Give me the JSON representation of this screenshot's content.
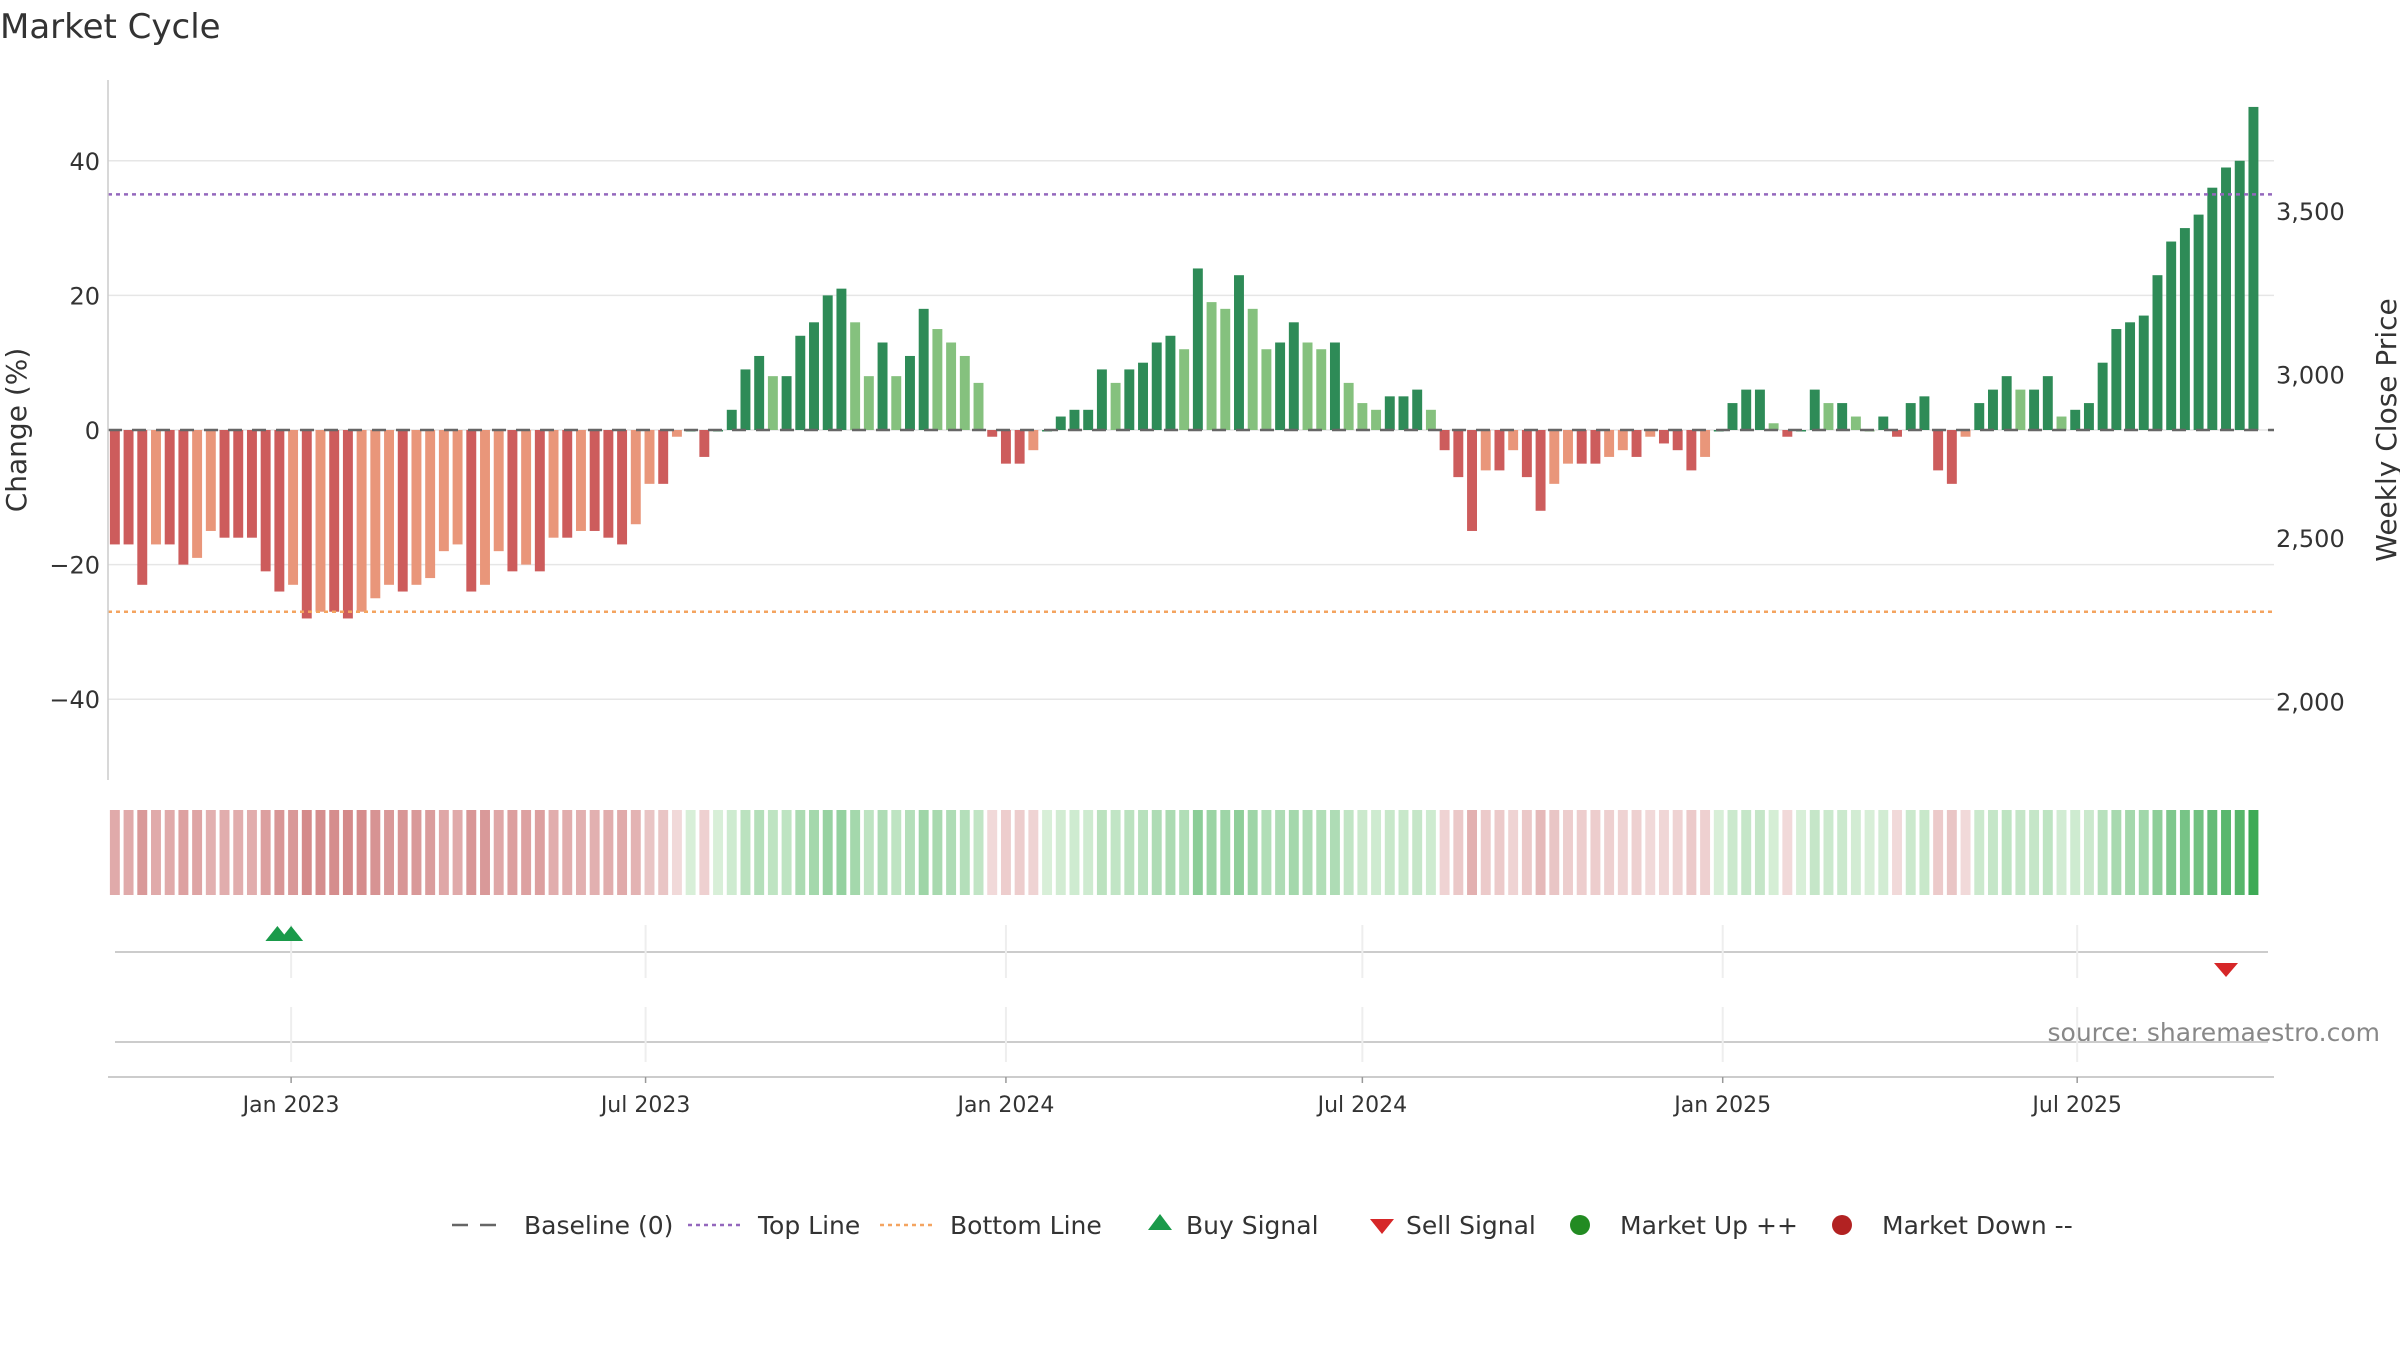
{
  "chart_data": {
    "type": "bar",
    "title": "Market Cycle",
    "ylabel": "Change (%)",
    "y2label": "Weekly Close Price",
    "ylim": [
      -52,
      52
    ],
    "y2lim": [
      1760,
      3900
    ],
    "yticks": [
      40,
      20,
      0,
      -20,
      -40
    ],
    "ytick_labels": [
      "40",
      "20",
      "0",
      "−20",
      "−40"
    ],
    "y2ticks": [
      3500,
      3000,
      2500,
      2000
    ],
    "y2tick_labels": [
      "3,500",
      "3,000",
      "2,500",
      "2,000"
    ],
    "x_start": "2022-10-03",
    "x_end": "2025-10-06",
    "x_step_days": 7,
    "xticks": [
      "2023-01-01",
      "2023-07-01",
      "2024-01-01",
      "2024-07-01",
      "2025-01-01",
      "2025-07-01"
    ],
    "xtick_labels": [
      "Jan 2023",
      "Jul 2023",
      "Jan 2024",
      "Jul 2024",
      "Jan 2025",
      "Jul 2025"
    ],
    "top_line": 35,
    "bottom_line": -27,
    "baseline": 0,
    "series": [
      {
        "name": "Change (%)",
        "values": [
          -17,
          -17,
          -23,
          -17,
          -17,
          -20,
          -19,
          -15,
          -16,
          -16,
          -16,
          -21,
          -24,
          -23,
          -28,
          -27,
          -27,
          -28,
          -27,
          -25,
          -23,
          -24,
          -23,
          -22,
          -18,
          -17,
          -24,
          -23,
          -18,
          -21,
          -20,
          -21,
          -16,
          -16,
          -15,
          -15,
          -16,
          -17,
          -14,
          -8,
          -8,
          -1,
          0,
          -4,
          0,
          3,
          9,
          11,
          8,
          8,
          14,
          16,
          20,
          21,
          16,
          8,
          13,
          8,
          11,
          18,
          15,
          13,
          11,
          7,
          -1,
          -5,
          -5,
          -3,
          0,
          2,
          3,
          3,
          9,
          7,
          9,
          10,
          13,
          14,
          12,
          24,
          19,
          18,
          23,
          18,
          12,
          13,
          16,
          13,
          12,
          13,
          7,
          4,
          3,
          5,
          5,
          6,
          3,
          -3,
          -7,
          -15,
          -6,
          -6,
          -3,
          -7,
          -12,
          -8,
          -5,
          -5,
          -5,
          -4,
          -3,
          -4,
          -1,
          -2,
          -3,
          -6,
          -4,
          0,
          4,
          6,
          6,
          1,
          -1,
          0,
          6,
          4,
          4,
          2,
          0,
          2,
          -1,
          4,
          5,
          -6,
          -8,
          -1,
          4,
          6,
          8,
          6,
          6,
          8,
          2,
          3,
          4,
          10,
          15,
          16,
          17,
          23,
          28,
          30,
          32,
          36,
          39,
          40,
          48
        ]
      }
    ],
    "signals": {
      "buy": [
        {
          "x": "2022-12-25"
        },
        {
          "x": "2023-01-01"
        }
      ],
      "sell": [
        {
          "x": "2025-09-15"
        }
      ],
      "market_up": [],
      "market_down": []
    },
    "source_note": "source: sharemaestro.com",
    "legend": {
      "position": "bottom",
      "items": [
        {
          "label": "Baseline (0)",
          "symbol": "dashed-gray"
        },
        {
          "label": "Top Line",
          "symbol": "dotted-purple"
        },
        {
          "label": "Bottom Line",
          "symbol": "dotted-orange"
        },
        {
          "label": "Buy Signal",
          "symbol": "triangle-up-green"
        },
        {
          "label": "Sell Signal",
          "symbol": "triangle-down-red"
        },
        {
          "label": "Market Up ++",
          "symbol": "dot-green"
        },
        {
          "label": "Market Down --",
          "symbol": "dot-red"
        }
      ]
    },
    "colors": {
      "pos_dark": "#2e8b57",
      "pos_light": "#85c17e",
      "neg_dark": "#cd5c5c",
      "neg_light": "#e9967a",
      "top_line": "#9467bd",
      "bottom_line": "#f4a460",
      "baseline": "#666666",
      "buy": "#1a9a4a",
      "sell": "#d62728",
      "market_up": "#228b22",
      "market_down": "#b22222",
      "grid": "#e6e6e6",
      "text": "#333333",
      "muted": "#888888"
    }
  }
}
